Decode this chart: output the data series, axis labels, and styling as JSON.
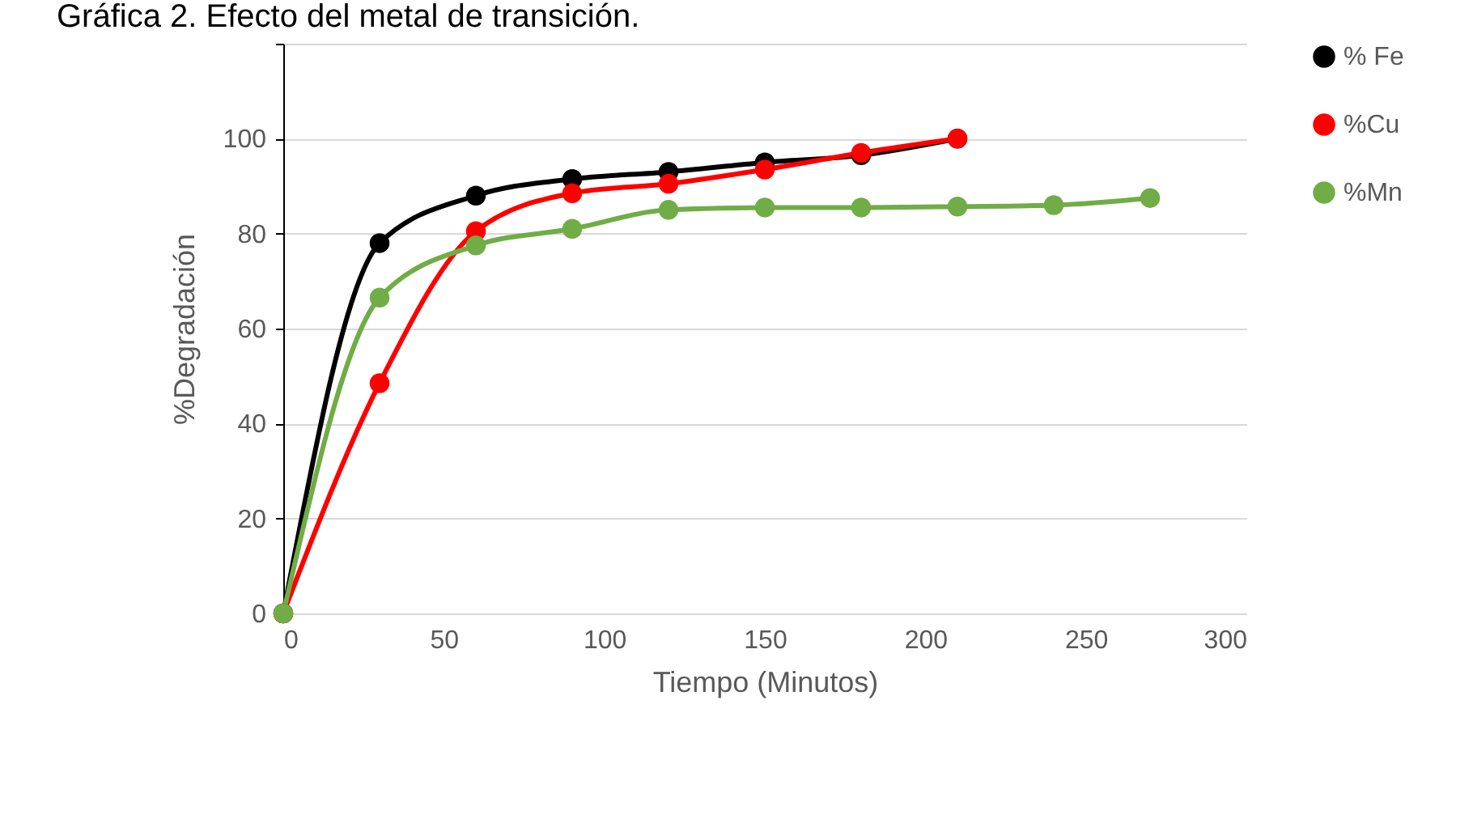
{
  "chart_data": {
    "type": "line",
    "title": "Gráfica 2. Efecto del metal de transición.",
    "xlabel": "Tiempo (Minutos)",
    "ylabel": "%Degradación",
    "series": [
      {
        "name": "% Fe",
        "color": "#000000",
        "x": [
          0,
          30,
          60,
          90,
          120,
          150,
          180,
          210
        ],
        "values": [
          0,
          78,
          88,
          91.5,
          93,
          95,
          96.5,
          100
        ]
      },
      {
        "name": "%Cu",
        "color": "#ff0000",
        "x": [
          0,
          30,
          60,
          90,
          120,
          150,
          180,
          210
        ],
        "values": [
          0,
          48.5,
          80.5,
          88.5,
          90.5,
          93.5,
          97,
          100
        ]
      },
      {
        "name": "%Mn",
        "color": "#70ad47",
        "x": [
          0,
          30,
          60,
          90,
          120,
          150,
          180,
          210,
          240,
          270
        ],
        "values": [
          0,
          66.5,
          77.5,
          81,
          85,
          85.5,
          85.5,
          85.7,
          86,
          87.5
        ]
      }
    ],
    "xlim": [
      0,
      300
    ],
    "xticks": [
      0,
      50,
      100,
      150,
      200,
      250,
      300
    ],
    "ylim": [
      0,
      120
    ],
    "yticks": [
      0,
      20,
      40,
      60,
      80,
      100,
      {
        "value": 120,
        "label": null
      }
    ],
    "grid": "y",
    "legend": "right",
    "marker": "circle",
    "line_style": "solid"
  }
}
